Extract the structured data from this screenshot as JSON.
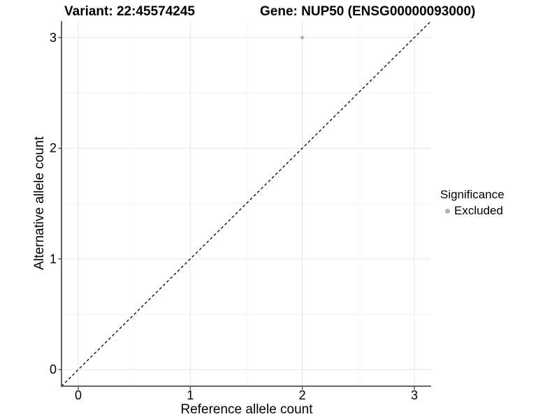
{
  "titles": {
    "variant": "Variant: 22:45574245",
    "gene": "Gene: NUP50 (ENSG00000093000)"
  },
  "axes": {
    "xlabel": "Reference allele count",
    "ylabel": "Alternative allele count"
  },
  "legend": {
    "title": "Significance",
    "items": [
      {
        "label": "Excluded",
        "color": "#b3b3b3"
      }
    ]
  },
  "chart_data": {
    "type": "scatter",
    "title_left": "Variant: 22:45574245",
    "title_right": "Gene: NUP50 (ENSG00000093000)",
    "xlabel": "Reference allele count",
    "ylabel": "Alternative allele count",
    "series": [
      {
        "name": "Excluded",
        "color": "#b3b3b3",
        "points": [
          {
            "x": 2,
            "y": 3
          }
        ]
      }
    ],
    "reference_line": {
      "type": "identity",
      "style": "dashed",
      "color": "#000000",
      "comment": "y = x diagonal across full panel"
    },
    "xlim": [
      -0.15,
      3.15
    ],
    "ylim": [
      -0.15,
      3.15
    ],
    "x_ticks": [
      0,
      1,
      2,
      3
    ],
    "y_ticks": [
      0,
      1,
      2,
      3
    ],
    "minor_ticks": [
      0.5,
      1.5,
      2.5
    ],
    "grid": {
      "major": true,
      "minor": true,
      "major_color": "#e8e8e8",
      "minor_color": "#f3f3f3"
    },
    "axis_color": "#333333",
    "point_radius_px": 2.7,
    "legend_position": "right",
    "background": "#ffffff"
  }
}
